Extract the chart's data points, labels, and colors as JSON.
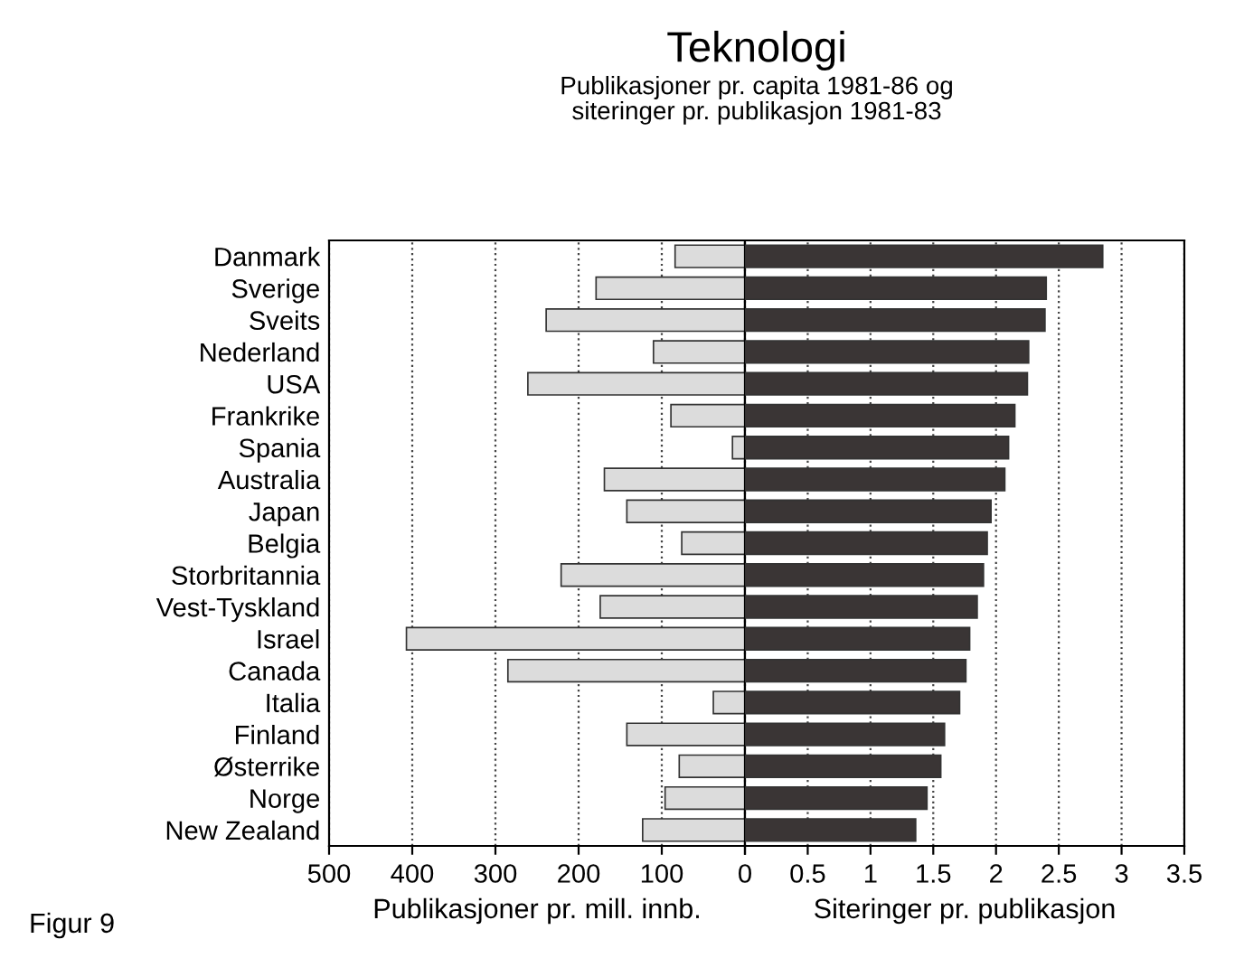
{
  "chart_data": [
    {
      "type": "bar",
      "orientation": "horizontal",
      "title": "Teknologi",
      "subtitle": "Publikasjoner pr. capita 1981-86 og\nsiteringer pr. publikasjon 1981-83",
      "xlabel": "Publikasjoner pr. mill. innb.",
      "categories": [
        "Danmark",
        "Sverige",
        "Sveits",
        "Nederland",
        "USA",
        "Frankrike",
        "Spania",
        "Australia",
        "Japan",
        "Belgia",
        "Storbritannia",
        "Vest-Tyskland",
        "Israel",
        "Canada",
        "Italia",
        "Finland",
        "Østerrike",
        "Norge",
        "New Zealand"
      ],
      "values": [
        84,
        179,
        239,
        110,
        261,
        89,
        15,
        169,
        142,
        76,
        221,
        174,
        407,
        285,
        38,
        142,
        79,
        96,
        123
      ],
      "color": "#dcdcdc",
      "xlim": [
        500,
        0
      ],
      "xticks": [
        500,
        400,
        300,
        200,
        100,
        0
      ],
      "grid": "x",
      "annotations": [
        "Figur 9"
      ]
    },
    {
      "type": "bar",
      "orientation": "horizontal",
      "xlabel": "Siteringer pr. publikasjon",
      "categories": [
        null,
        null,
        null,
        null,
        null,
        null,
        null,
        null,
        null,
        null,
        null,
        null,
        null,
        null,
        null,
        null,
        null,
        null,
        null
      ],
      "values": [
        2.85,
        2.4,
        2.39,
        2.26,
        2.25,
        2.15,
        2.1,
        2.07,
        1.96,
        1.93,
        1.9,
        1.85,
        1.79,
        1.76,
        1.71,
        1.59,
        1.56,
        1.45,
        1.36
      ],
      "color": "#3a3535",
      "xlim": [
        0,
        3.5
      ],
      "xticks": [
        {
          "value": 0,
          "label": null
        },
        0.5,
        1,
        1.5,
        2,
        2.5,
        3,
        3.5
      ],
      "grid": "x",
      "tick_labels": "x"
    }
  ]
}
